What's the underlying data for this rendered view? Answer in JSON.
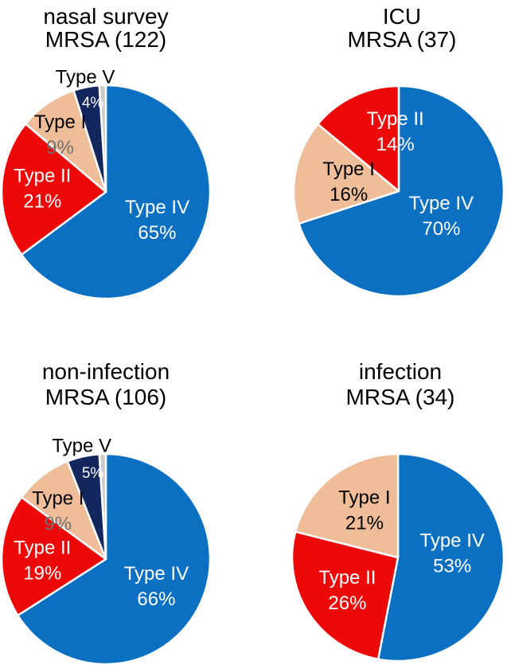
{
  "figure": {
    "background": "#ffffff",
    "description": "Four pie charts of MRSA SCCmec type distributions"
  },
  "colors": {
    "type_iv_blue": "#0b70c2",
    "type_ii_red": "#ee0909",
    "type_i_peach": "#efbd97",
    "type_v_navy": "#13275e",
    "unlabeled_gray": "#cccccc",
    "muted_pct_gray": "#717171",
    "title_black": "#000000",
    "label_white": "#ffffff"
  },
  "chart_data": [
    {
      "type": "pie",
      "title_lines": [
        "nasal survey",
        "MRSA (122)"
      ],
      "n": 122,
      "start_angle_deg": 0,
      "direction": "clockwise",
      "slices": [
        {
          "label": "Type IV",
          "value": 65,
          "pct_label": "65%",
          "color": "#0b70c2",
          "label_color": "#ffffff",
          "pct_color": "#ffffff"
        },
        {
          "label": "Type II",
          "value": 21,
          "pct_label": "21%",
          "color": "#ee0909",
          "label_color": "#ffffff",
          "pct_color": "#ffffff"
        },
        {
          "label": "Type I",
          "value": 9,
          "pct_label": "9%",
          "color": "#efbd97",
          "label_color": "#000000",
          "pct_color": "#717171"
        },
        {
          "label": "Type V",
          "value": 4,
          "pct_label": "4%",
          "color": "#13275e",
          "label_color": "#000000",
          "pct_color": "#ffffff",
          "label_outside": true
        },
        {
          "label": "",
          "value": 1,
          "pct_label": "",
          "color": "#cccccc"
        }
      ]
    },
    {
      "type": "pie",
      "title_lines": [
        "ICU",
        "MRSA (37)"
      ],
      "n": 37,
      "start_angle_deg": 0,
      "direction": "clockwise",
      "slices": [
        {
          "label": "Type IV",
          "value": 70,
          "pct_label": "70%",
          "color": "#0b70c2",
          "label_color": "#ffffff",
          "pct_color": "#ffffff"
        },
        {
          "label": "Type I",
          "value": 16,
          "pct_label": "16%",
          "color": "#efbd97",
          "label_color": "#000000",
          "pct_color": "#000000"
        },
        {
          "label": "Type II",
          "value": 14,
          "pct_label": "14%",
          "color": "#ee0909",
          "label_color": "#ffffff",
          "pct_color": "#ffffff"
        }
      ]
    },
    {
      "type": "pie",
      "title_lines": [
        "non-infection",
        "MRSA (106)"
      ],
      "n": 106,
      "start_angle_deg": 0,
      "direction": "clockwise",
      "slices": [
        {
          "label": "Type IV",
          "value": 66,
          "pct_label": "66%",
          "color": "#0b70c2",
          "label_color": "#ffffff",
          "pct_color": "#ffffff"
        },
        {
          "label": "Type II",
          "value": 19,
          "pct_label": "19%",
          "color": "#ee0909",
          "label_color": "#ffffff",
          "pct_color": "#ffffff"
        },
        {
          "label": "Type I",
          "value": 9,
          "pct_label": "9%",
          "color": "#efbd97",
          "label_color": "#000000",
          "pct_color": "#717171"
        },
        {
          "label": "Type V",
          "value": 5,
          "pct_label": "5%",
          "color": "#13275e",
          "label_color": "#000000",
          "pct_color": "#ffffff",
          "label_outside": true
        },
        {
          "label": "",
          "value": 1,
          "pct_label": "",
          "color": "#cccccc"
        }
      ]
    },
    {
      "type": "pie",
      "title_lines": [
        "infection",
        "MRSA (34)"
      ],
      "n": 34,
      "start_angle_deg": 0,
      "direction": "clockwise",
      "slices": [
        {
          "label": "Type IV",
          "value": 53,
          "pct_label": "53%",
          "color": "#0b70c2",
          "label_color": "#ffffff",
          "pct_color": "#ffffff"
        },
        {
          "label": "Type II",
          "value": 26,
          "pct_label": "26%",
          "color": "#ee0909",
          "label_color": "#ffffff",
          "pct_color": "#ffffff"
        },
        {
          "label": "Type I",
          "value": 21,
          "pct_label": "21%",
          "color": "#efbd97",
          "label_color": "#000000",
          "pct_color": "#000000"
        }
      ]
    }
  ]
}
